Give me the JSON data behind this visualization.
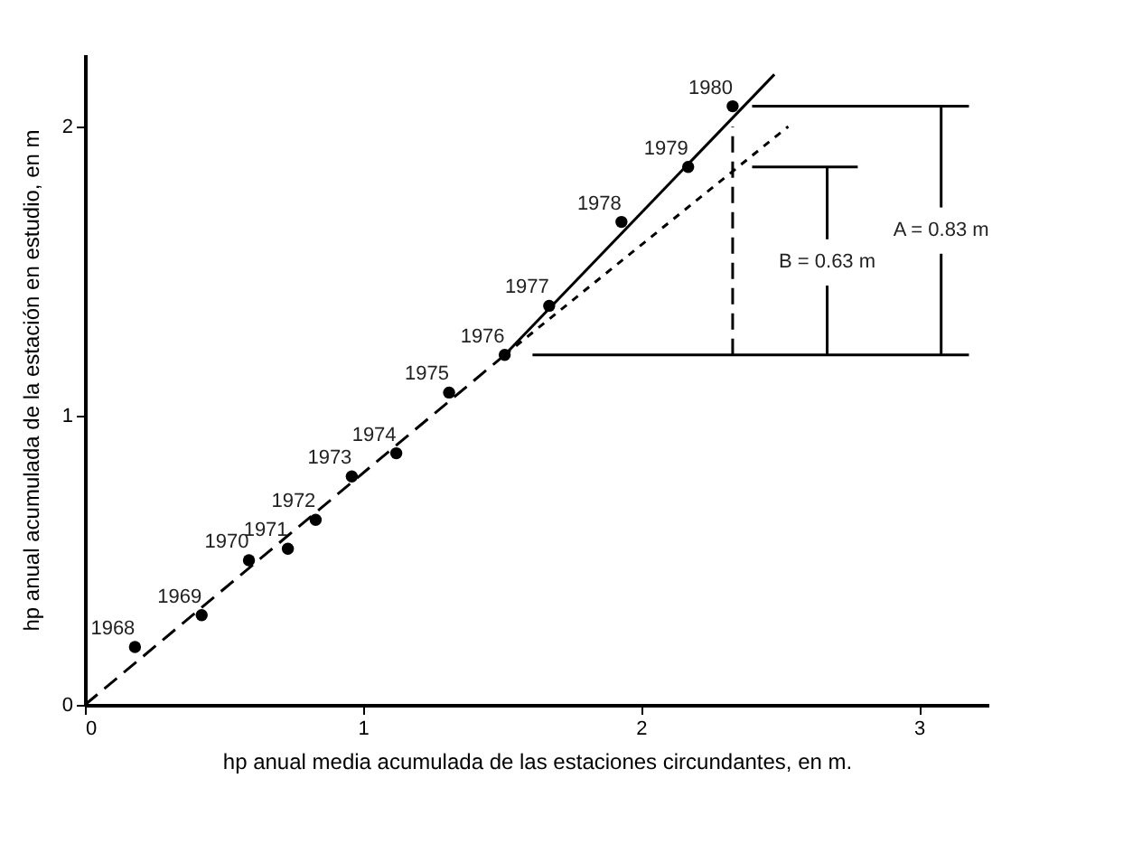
{
  "chart_data": {
    "type": "scatter",
    "xlabel": "hp anual media acumulada de las estaciones circundantes, en m.",
    "ylabel": "hp anual acumulada de la estación en estudio, en m",
    "xlim": [
      0,
      3.25
    ],
    "ylim": [
      0,
      2.25
    ],
    "xticks": [
      0,
      1,
      2,
      3
    ],
    "yticks": [
      0,
      1,
      2
    ],
    "grid": false,
    "series": [
      {
        "color": "#000000",
        "marker": "circle",
        "x": [
          0.18,
          0.42,
          0.59,
          0.73,
          0.83,
          0.96,
          1.12,
          1.31,
          1.51,
          1.67,
          1.93,
          2.17,
          2.33
        ],
        "values": [
          0.2,
          0.31,
          0.5,
          0.54,
          0.64,
          0.79,
          0.87,
          1.08,
          1.21,
          1.38,
          1.67,
          1.86,
          2.07
        ]
      },
      {
        "type": "line",
        "marker": "none",
        "color": "#000000",
        "line_style": "dashed",
        "x": [
          0,
          1.51
        ],
        "values": [
          0,
          1.21
        ]
      },
      {
        "type": "line",
        "marker": "none",
        "color": "#000000",
        "line_style": "solid",
        "x": [
          1.51,
          2.48
        ],
        "values": [
          1.21,
          2.18
        ]
      },
      {
        "type": "line",
        "marker": "none",
        "color": "#000000",
        "line_style": "dotted",
        "x": [
          1.51,
          2.53
        ],
        "values": [
          1.21,
          2.0
        ]
      },
      {
        "type": "line",
        "marker": "none",
        "color": "#000000",
        "line_style": "dashed",
        "x": [
          2.33,
          2.33
        ],
        "values": [
          1.21,
          2.0
        ]
      },
      {
        "type": "line",
        "marker": "none",
        "color": "#000000",
        "line_style": "solid",
        "x": [
          2.4,
          3.18
        ],
        "values": [
          2.07,
          2.07
        ]
      },
      {
        "type": "line",
        "marker": "none",
        "color": "#000000",
        "line_style": "solid",
        "x": [
          2.4,
          2.78
        ],
        "values": [
          1.86,
          1.86
        ]
      },
      {
        "type": "line",
        "marker": "none",
        "color": "#000000",
        "line_style": "solid",
        "x": [
          1.61,
          3.18
        ],
        "values": [
          1.21,
          1.21
        ]
      },
      {
        "type": "line",
        "marker": "none",
        "color": "#000000",
        "line_style": "solid",
        "x": [
          3.08,
          3.08
        ],
        "values": [
          1.21,
          1.56
        ]
      },
      {
        "type": "line",
        "marker": "none",
        "color": "#000000",
        "line_style": "solid",
        "x": [
          3.08,
          3.08
        ],
        "values": [
          1.72,
          2.07
        ]
      },
      {
        "type": "line",
        "marker": "none",
        "color": "#000000",
        "line_style": "solid",
        "x": [
          2.67,
          2.67
        ],
        "values": [
          1.21,
          1.45
        ]
      },
      {
        "type": "line",
        "marker": "none",
        "color": "#000000",
        "line_style": "solid",
        "x": [
          2.67,
          2.67
        ],
        "values": [
          1.61,
          1.86
        ]
      }
    ],
    "annotations": [
      {
        "text": "1968",
        "x": 0.18,
        "y": 0.2
      },
      {
        "text": "1969",
        "x": 0.42,
        "y": 0.31
      },
      {
        "text": "1970",
        "x": 0.59,
        "y": 0.5
      },
      {
        "text": "1971",
        "x": 0.73,
        "y": 0.54
      },
      {
        "text": "1972",
        "x": 0.83,
        "y": 0.64
      },
      {
        "text": "1973",
        "x": 0.96,
        "y": 0.79
      },
      {
        "text": "1974",
        "x": 1.12,
        "y": 0.87
      },
      {
        "text": "1975",
        "x": 1.31,
        "y": 1.08
      },
      {
        "text": "1976",
        "x": 1.51,
        "y": 1.21
      },
      {
        "text": "1977",
        "x": 1.67,
        "y": 1.38
      },
      {
        "text": "1978",
        "x": 1.93,
        "y": 1.67
      },
      {
        "text": "1979",
        "x": 2.17,
        "y": 1.86
      },
      {
        "text": "1980",
        "x": 2.33,
        "y": 2.07
      },
      "A = 0.83 m",
      "B = 0.63 m"
    ]
  }
}
